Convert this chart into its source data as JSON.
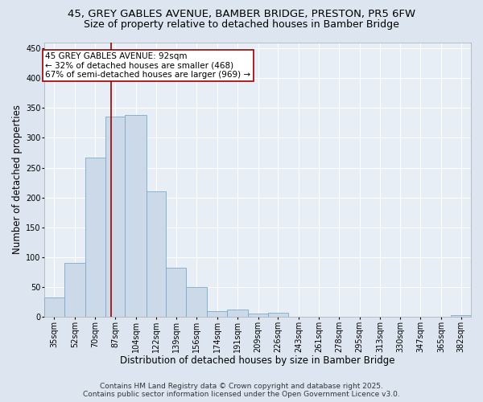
{
  "title_line1": "45, GREY GABLES AVENUE, BAMBER BRIDGE, PRESTON, PR5 6FW",
  "title_line2": "Size of property relative to detached houses in Bamber Bridge",
  "xlabel": "Distribution of detached houses by size in Bamber Bridge",
  "ylabel": "Number of detached properties",
  "bin_labels": [
    "35sqm",
    "52sqm",
    "70sqm",
    "87sqm",
    "104sqm",
    "122sqm",
    "139sqm",
    "156sqm",
    "174sqm",
    "191sqm",
    "209sqm",
    "226sqm",
    "243sqm",
    "261sqm",
    "278sqm",
    "295sqm",
    "313sqm",
    "330sqm",
    "347sqm",
    "365sqm",
    "382sqm"
  ],
  "bin_edges": [
    35,
    52,
    70,
    87,
    104,
    122,
    139,
    156,
    174,
    191,
    209,
    226,
    243,
    261,
    278,
    295,
    313,
    330,
    347,
    365,
    382
  ],
  "bar_heights": [
    33,
    90,
    267,
    335,
    338,
    210,
    83,
    50,
    10,
    13,
    6,
    7,
    0,
    0,
    0,
    0,
    0,
    0,
    0,
    0,
    3
  ],
  "bar_color": "#ccd9e8",
  "bar_edge_color": "#7aaac8",
  "property_size": 92,
  "vline_color": "#990000",
  "annotation_line1": "45 GREY GABLES AVENUE: 92sqm",
  "annotation_line2": "← 32% of detached houses are smaller (468)",
  "annotation_line3": "67% of semi-detached houses are larger (969) →",
  "annotation_box_color": "#ffffff",
  "annotation_box_edge_color": "#990000",
  "ylim": [
    0,
    460
  ],
  "yticks": [
    0,
    50,
    100,
    150,
    200,
    250,
    300,
    350,
    400,
    450
  ],
  "bg_color": "#dde6f0",
  "plot_bg_color": "#e8eef6",
  "grid_color": "#ffffff",
  "footer_line1": "Contains HM Land Registry data © Crown copyright and database right 2025.",
  "footer_line2": "Contains public sector information licensed under the Open Government Licence v3.0.",
  "title_fontsize": 9.5,
  "subtitle_fontsize": 9,
  "axis_label_fontsize": 8.5,
  "tick_fontsize": 7,
  "annotation_fontsize": 7.5,
  "footer_fontsize": 6.5
}
